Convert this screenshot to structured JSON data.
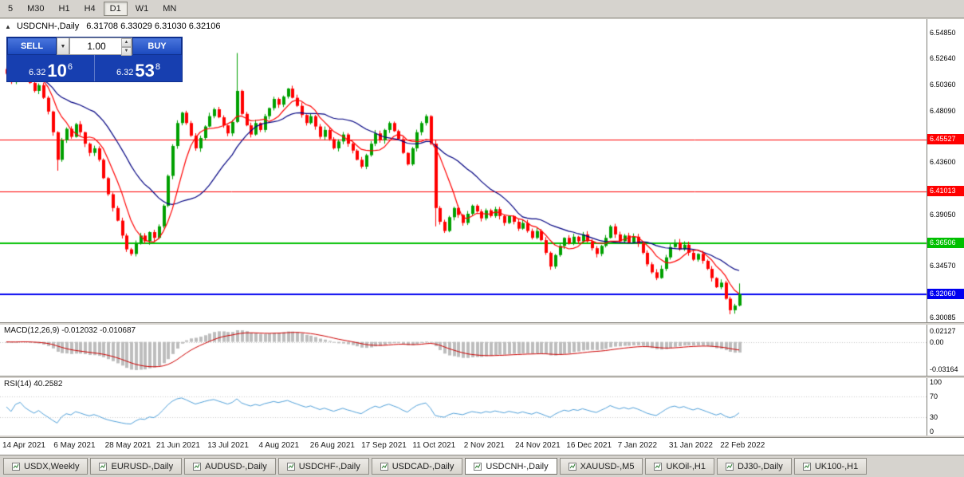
{
  "toolbar": {
    "timeframes": [
      {
        "label": "5",
        "active": false
      },
      {
        "label": "M30",
        "active": false
      },
      {
        "label": "H1",
        "active": false
      },
      {
        "label": "H4",
        "active": false
      },
      {
        "label": "D1",
        "active": true
      },
      {
        "label": "W1",
        "active": false
      },
      {
        "label": "MN",
        "active": false
      }
    ]
  },
  "chart": {
    "symbol_title": "USDCNH-,Daily",
    "ohlc_text": "6.31708 6.33029 6.31030 6.32106",
    "collapse_arrow": "▲"
  },
  "trade_panel": {
    "sell_label": "SELL",
    "buy_label": "BUY",
    "volume": "1.00",
    "sell_price": {
      "prefix": "6.32",
      "big": "10",
      "sup": "6"
    },
    "buy_price": {
      "prefix": "6.32",
      "big": "53",
      "sup": "8"
    }
  },
  "chart_data": {
    "type": "candlestick",
    "symbol": "USDCNH-",
    "timeframe": "Daily",
    "up_color": "#00A000",
    "down_color": "#FF0000",
    "price_axis": {
      "min": 6.2965,
      "max": 6.5605,
      "ticks": [
        {
          "text": "6.54850",
          "value": 6.5485
        },
        {
          "text": "6.52640",
          "value": 6.5264
        },
        {
          "text": "6.50360",
          "value": 6.5036
        },
        {
          "text": "6.48090",
          "value": 6.4809
        },
        {
          "text": "6.43600",
          "value": 6.436
        },
        {
          "text": "6.39050",
          "value": 6.3905
        },
        {
          "text": "6.34570",
          "value": 6.3457
        },
        {
          "text": "6.30085",
          "value": 6.30085
        }
      ]
    },
    "hlines": [
      {
        "value": 6.45527,
        "text": "6.45527",
        "color": "#FF0000",
        "lw": 1
      },
      {
        "value": 6.41013,
        "text": "6.41013",
        "color": "#FF0000",
        "lw": 1
      },
      {
        "value": 6.36506,
        "text": "6.36506",
        "color": "#00C000",
        "lw": 2
      },
      {
        "value": 6.3206,
        "text": "6.32060",
        "color": "#0000F0",
        "lw": 2
      }
    ],
    "x_labels": [
      "14 Apr 2021",
      "6 May 2021",
      "28 May 2021",
      "21 Jun 2021",
      "13 Jul 2021",
      "4 Aug 2021",
      "26 Aug 2021",
      "17 Sep 2021",
      "11 Oct 2021",
      "2 Nov 2021",
      "24 Nov 2021",
      "16 Dec 2021",
      "7 Jan 2022",
      "31 Jan 2022",
      "22 Feb 2022"
    ],
    "closes": [
      6.513,
      6.506,
      6.517,
      6.521,
      6.512,
      6.505,
      6.498,
      6.503,
      6.492,
      6.48,
      6.462,
      6.438,
      6.455,
      6.465,
      6.458,
      6.469,
      6.462,
      6.452,
      6.444,
      6.448,
      6.438,
      6.422,
      6.408,
      6.396,
      6.385,
      6.372,
      6.36,
      6.356,
      6.365,
      6.372,
      6.367,
      6.375,
      6.37,
      6.38,
      6.398,
      6.424,
      6.45,
      6.47,
      6.479,
      6.47,
      6.459,
      6.448,
      6.457,
      6.467,
      6.476,
      6.482,
      6.475,
      6.468,
      6.461,
      6.471,
      6.498,
      6.478,
      6.468,
      6.46,
      6.47,
      6.464,
      6.476,
      6.483,
      6.491,
      6.486,
      6.493,
      6.5,
      6.492,
      6.485,
      6.477,
      6.47,
      6.476,
      6.467,
      6.458,
      6.464,
      6.456,
      6.448,
      6.454,
      6.46,
      6.452,
      6.446,
      6.438,
      6.432,
      6.442,
      6.452,
      6.461,
      6.455,
      6.464,
      6.47,
      6.463,
      6.456,
      6.444,
      6.434,
      6.448,
      6.462,
      6.47,
      6.476,
      6.452,
      6.396,
      6.384,
      6.376,
      6.388,
      6.396,
      6.39,
      6.383,
      6.391,
      6.398,
      6.393,
      6.387,
      6.394,
      6.389,
      6.395,
      6.389,
      6.383,
      6.389,
      6.384,
      6.378,
      6.383,
      6.376,
      6.37,
      6.376,
      6.368,
      6.357,
      6.345,
      6.355,
      6.363,
      6.37,
      6.365,
      6.371,
      6.367,
      6.373,
      6.367,
      6.361,
      6.356,
      6.363,
      6.37,
      6.38,
      6.373,
      6.367,
      6.372,
      6.366,
      6.371,
      6.365,
      6.357,
      6.347,
      6.34,
      6.335,
      6.343,
      6.353,
      6.362,
      6.366,
      6.36,
      6.364,
      6.357,
      6.351,
      6.356,
      6.35,
      6.343,
      6.335,
      6.327,
      6.331,
      6.317,
      6.307,
      6.311,
      6.3211
    ],
    "wick_overrides": {
      "11": {
        "low": 6.4285
      },
      "50": {
        "high": 6.531
      },
      "93": {
        "low": 6.38
      },
      "157": {
        "low": 6.3035
      },
      "159": {
        "low": 6.3103,
        "high": 6.3303
      }
    },
    "moving_averages": [
      {
        "period": 7,
        "color": "#FF0000"
      },
      {
        "period": 20,
        "color": "#000080"
      }
    ],
    "indicators": {
      "macd": {
        "name": "MACD(12,26,9)",
        "values": "-0.012032 -0.010687",
        "axis_labels": [
          "0.02127",
          "0.00",
          "-0.03164"
        ],
        "hist_color": "#BDBDBD",
        "signal_color": "#CC0000"
      },
      "rsi": {
        "name": "RSI(14)",
        "values": "40.2582",
        "axis_labels": [
          "100",
          "70",
          "30",
          "0"
        ],
        "levels": [
          30,
          70
        ],
        "line_color": "#4F9FD8"
      }
    }
  },
  "tabs": [
    {
      "label": "USDX,Weekly",
      "active": false
    },
    {
      "label": "EURUSD-,Daily",
      "active": false
    },
    {
      "label": "AUDUSD-,Daily",
      "active": false
    },
    {
      "label": "USDCHF-,Daily",
      "active": false
    },
    {
      "label": "USDCAD-,Daily",
      "active": false
    },
    {
      "label": "USDCNH-,Daily",
      "active": true
    },
    {
      "label": "XAUUSD-,M5",
      "active": false
    },
    {
      "label": "UKOil-,H1",
      "active": false
    },
    {
      "label": "DJ30-,Daily",
      "active": false
    },
    {
      "label": "UK100-,H1",
      "active": false
    }
  ]
}
